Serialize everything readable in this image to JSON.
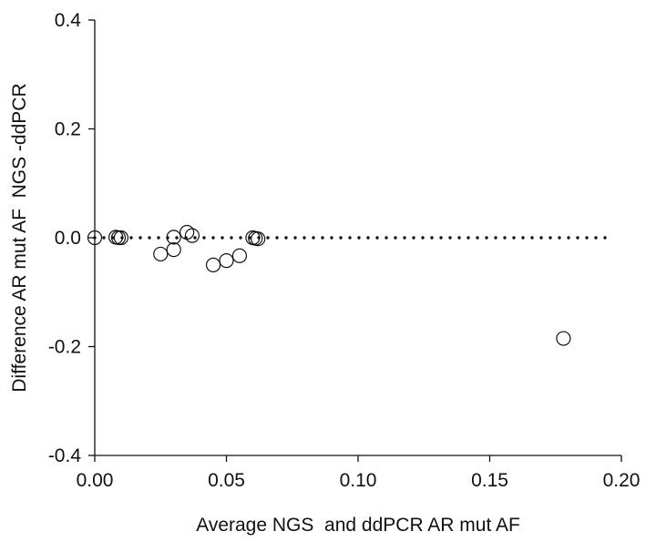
{
  "chart_data": {
    "type": "scatter",
    "title": "",
    "xlabel": "Average NGS  and ddPCR AR mut AF",
    "ylabel": "Difference AR mut AF  NGS -ddPCR",
    "xlim": [
      0.0,
      0.2
    ],
    "ylim": [
      -0.4,
      0.4
    ],
    "xticks": [
      0.0,
      0.05,
      0.1,
      0.15,
      0.2
    ],
    "yticks": [
      -0.4,
      -0.2,
      0.0,
      0.2,
      0.4
    ],
    "xtick_labels": [
      "0.00",
      "0.05",
      "0.10",
      "0.15",
      "0.20"
    ],
    "ytick_labels": [
      "-0.4",
      "-0.2",
      "0.0",
      "0.2",
      "0.4"
    ],
    "reference_line": {
      "y": 0.0,
      "style": "dotted"
    },
    "grid": false,
    "legend": false,
    "marker": "open-circle",
    "points": [
      {
        "x": 0.0,
        "y": 0.0
      },
      {
        "x": 0.008,
        "y": 0.001
      },
      {
        "x": 0.009,
        "y": 0.0
      },
      {
        "x": 0.01,
        "y": 0.0
      },
      {
        "x": 0.025,
        "y": -0.03
      },
      {
        "x": 0.03,
        "y": -0.022
      },
      {
        "x": 0.03,
        "y": 0.001
      },
      {
        "x": 0.035,
        "y": 0.01
      },
      {
        "x": 0.037,
        "y": 0.004
      },
      {
        "x": 0.045,
        "y": -0.05
      },
      {
        "x": 0.05,
        "y": -0.042
      },
      {
        "x": 0.055,
        "y": -0.033
      },
      {
        "x": 0.06,
        "y": 0.0
      },
      {
        "x": 0.061,
        "y": -0.001
      },
      {
        "x": 0.062,
        "y": -0.002
      },
      {
        "x": 0.178,
        "y": -0.185
      }
    ]
  }
}
